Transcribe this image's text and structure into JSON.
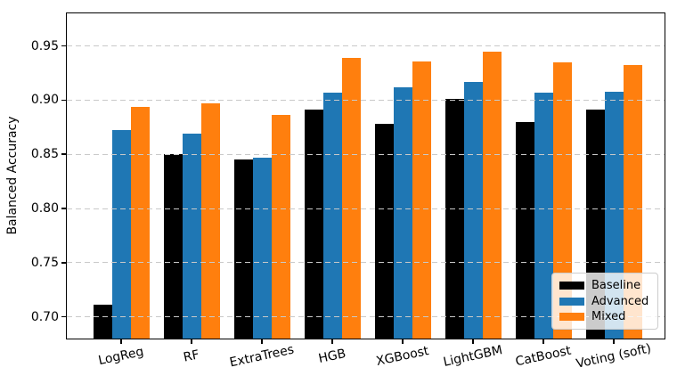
{
  "chart_data": {
    "type": "bar",
    "title": "",
    "xlabel": "",
    "ylabel": "Balanced Accuracy",
    "categories": [
      "LogReg",
      "RF",
      "ExtraTrees",
      "HGB",
      "XGBoost",
      "LightGBM",
      "CatBoost",
      "Voting (soft)"
    ],
    "series": [
      {
        "name": "Baseline",
        "color": "#000000",
        "values": [
          0.711,
          0.85,
          0.845,
          0.891,
          0.878,
          0.901,
          0.88,
          0.891
        ]
      },
      {
        "name": "Advanced",
        "color": "#1f77b4",
        "values": [
          0.872,
          0.869,
          0.847,
          0.907,
          0.912,
          0.917,
          0.907,
          0.908
        ]
      },
      {
        "name": "Mixed",
        "color": "#ff7f0e",
        "values": [
          0.894,
          0.897,
          0.886,
          0.939,
          0.936,
          0.945,
          0.935,
          0.932
        ]
      }
    ],
    "ylim": [
      0.68,
      0.98
    ],
    "yticks": [
      0.7,
      0.75,
      0.8,
      0.85,
      0.9,
      0.95
    ],
    "yticklabels": [
      "0.70",
      "0.75",
      "0.80",
      "0.85",
      "0.90",
      "0.95"
    ],
    "grid": "y, dashed, drawn above bars",
    "grid_color": "#c9c9c9",
    "legend_position": "lower right",
    "x_tick_label_rotation_deg": -12
  }
}
